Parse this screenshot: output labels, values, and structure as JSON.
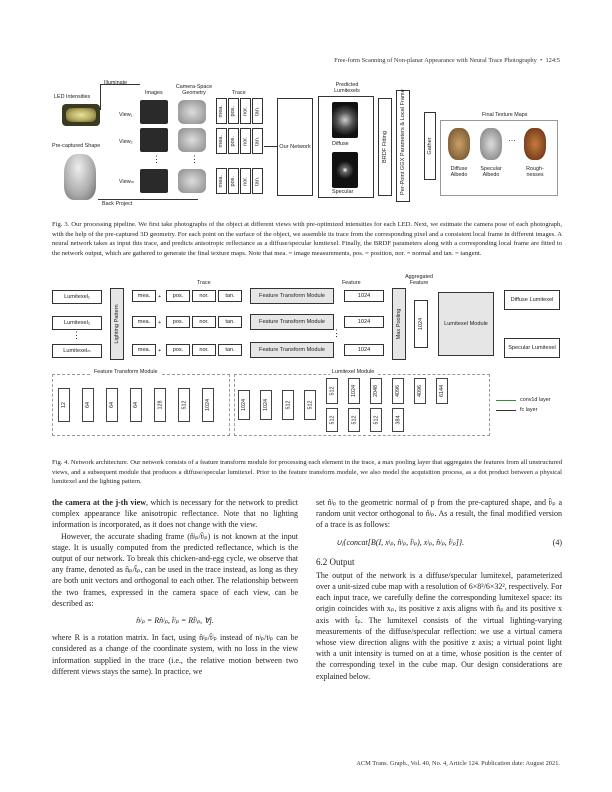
{
  "header": {
    "title": "Free-form Scanning of Non-planar Appearance with Neural Trace Photography",
    "bullet": "•",
    "page": "124:5"
  },
  "fig3": {
    "labels": {
      "led": "LED Intensities",
      "illuminate": "Illuminate",
      "images": "Images",
      "geometry": "Camera-Space Geometry",
      "trace": "Trace",
      "predicted": "Predicted Lumitexels",
      "precaptured": "Pre-captured Shape",
      "back_project": "Back Project",
      "view1": "View₁",
      "view2": "View₂",
      "viewm": "Viewₘ",
      "network": "Our Network",
      "diffuse": "Diffuse",
      "specular": "Specular",
      "brdf": "BRDF Fitting",
      "perpoint": "Per-Point GGX Parameters & Local Frame",
      "gather": "Gather",
      "final": "Final Texture Maps",
      "diffuse_albedo": "Diffuse Albedo",
      "specular_albedo": "Specular Albedo",
      "roughness": "Rough-nesses",
      "trace_cells": [
        "mea.",
        "pos.",
        "nor.",
        "tan."
      ]
    },
    "caption_label": "Fig. 3.",
    "caption": "Our processing pipeline. We first take photographs of the object at different views with pre-optimized intensities for each LED. Next, we estimate the camera pose of each photograph, with the help of the pre-captured 3D geometry. For each point on the surface of the object, we assemble its trace from the corresponding pixel and a consistent local frame in different images. A neural network takes as input this trace, and predicts anisotropic reflectance as a diffuse/specular lumitexel. Finally, the BRDF parameters along with a corresponding local frame are fitted to the network output, which are gathered to generate the final texture maps. Note that mea. = image measurements, pos. = position, nor. = normal and tan. = tangent."
  },
  "fig4": {
    "labels": {
      "trace": "Trace",
      "feature": "Feature",
      "aggregated": "Aggregated Feature",
      "lumitexel1": "Lumitexel₁",
      "lumitexel2": "Lumitexel₂",
      "lumitexelm": "Lumitexelₘ",
      "lighting": "Lighting Pattern",
      "ftm": "Feature Transform Module",
      "f1024": "1024",
      "maxpool": "Max Pooling",
      "agg1024": "1024",
      "lum_module": "Lumitexel Module",
      "diffuse_lum": "Diffuse Lumitexel",
      "specular_lum": "Specular Lumitexel",
      "ftm_title": "Feature Transform Module",
      "lum_title": "Lumitexel Module",
      "conv": "conv1d layer",
      "fc": "fc layer",
      "plus": "+",
      "trace_cells": [
        "mea.",
        "pos.",
        "nor.",
        "tan."
      ]
    },
    "ftm_layers": [
      "12",
      "64",
      "64",
      "64",
      "128",
      "512",
      "1024"
    ],
    "lum_a": [
      "1024",
      "1024",
      "512",
      "512"
    ],
    "lum_top": [
      "512",
      "1024",
      "2048",
      "4096"
    ],
    "lum_bot": [
      "512",
      "512",
      "512",
      "384"
    ],
    "lum_tail": [
      "4096",
      "6144"
    ],
    "caption_label": "Fig. 4.",
    "caption": "Network architecture. Our network consists of a feature transform module for processing each element in the trace, a max pooling layer that aggregates the features from all unstructured views, and a subsequent module that produces a diffuse/specular lumitexel. Prior to the feature transform module, we also model the acquisition process, as a dot product between a physical lumitexel and the lighting pattern."
  },
  "left": {
    "p1_bold": "the camera at the j-th view",
    "p1": ", which is necessary for the network to predict complex appearance like anisotropic reflectance. Note that no lighting information is incorporated, as it does not change with the view.",
    "p2": "However, the accurate shading frame (n̂ʲₚ/t̂ʲₚ) is not known at the input stage. It is usually computed from the predicted reflectance, which is the output of our network. To break this chicken-and-egg cycle, we observe that any frame, denoted as n̂ₚ/t̂ₚ, can be used in the trace instead, as long as they are both unit vectors and orthogonal to each other. The relationship between the two frames, expressed in the camera space of each view, can be described as:",
    "eq": "n̂ʲₚ = Rn̂ʲₚ, t̂ʲₚ = Rt̂ʲₚ, ∀j.",
    "p3": "where R is a rotation matrix. In fact, using n̂ʲₚ/t̂ʲₚ instead of nʲₚ/tʲₚ can be considered as a change of the coordinate system, with no loss in the view information supplied in the trace (i.e., the relative motion between two different views stays the same). In practice, we"
  },
  "right": {
    "p1": "set n̂ʲₚ to the geometric normal of p from the pre-captured shape, and t̂ʲₚ a random unit vector orthogonal to n̂ʲₚ. As a result, the final modified version of a trace is as follows:",
    "eq": "∪ⱼ{concat[B(I, xʲₚ, n̂ʲₚ, t̂ʲₚ), xʲₚ, n̂ʲₚ, t̂ʲₚ]}.",
    "eqno": "(4)",
    "section": "6.2   Output",
    "p2": "The output of the network is a diffuse/specular lumitexel, parameterized over a unit-sized cube map with a resolution of 6×8²/6×32², respectively. For each input trace, we carefully define the corresponding lumitexel space: its origin coincides with xₚ, its positive z axis aligns with n̂ₚ and its positive x axis with t̂ₚ. The lumitexel consists of the virtual lighting-varying measurements of the diffuse/specular reflection: we use a virtual camera whose view direction aligns with the positive z axis; a virtual point light with a unit intensity is turned on at a time, whose position is the center of the corresponding texel in the cube map. Our design considerations are explained below."
  },
  "footer": "ACM Trans. Graph., Vol. 40, No. 4, Article 124. Publication date: August 2021."
}
